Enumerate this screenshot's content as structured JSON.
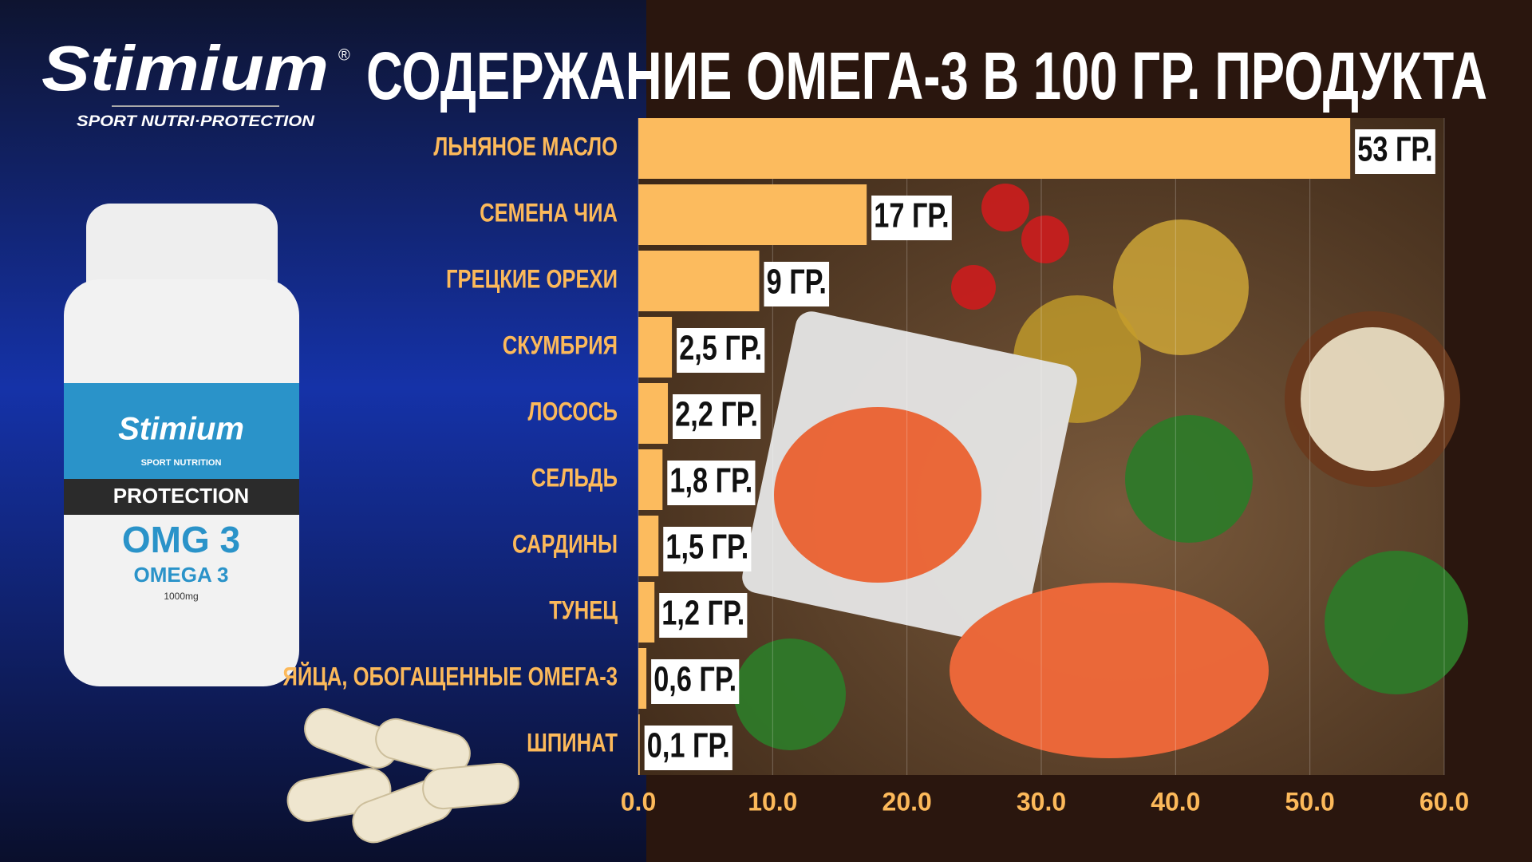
{
  "brand": {
    "name": "Stimium",
    "mark": "®",
    "tagline": "SPORT NUTRI·PROTECTION"
  },
  "product": {
    "brand": "Stimium",
    "line": "SPORT NUTRITION",
    "band": "PROTECTION",
    "name": "OMG 3",
    "subtitle": "OMEGA 3",
    "dose": "1000mg"
  },
  "chart_data": {
    "type": "bar",
    "orientation": "horizontal",
    "title": "СОДЕРЖАНИЕ ОМЕГА-3 В 100 ГР. ПРОДУКТА",
    "categories": [
      "ЛЬНЯНОЕ МАСЛО",
      "СЕМЕНА ЧИА",
      "ГРЕЦКИЕ ОРЕХИ",
      "СКУМБРИЯ",
      "ЛОСОСЬ",
      "СЕЛЬДЬ",
      "САРДИНЫ",
      "ТУНЕЦ",
      "ЯЙЦА, ОБОГАЩЕННЫЕ ОМЕГА-3",
      "ШПИНАТ"
    ],
    "values": [
      53,
      17,
      9,
      2.5,
      2.2,
      1.8,
      1.5,
      1.2,
      0.6,
      0.1
    ],
    "value_labels": [
      "53 ГР.",
      "17 ГР.",
      "9 ГР.",
      "2,5 ГР.",
      "2,2 ГР.",
      "1,8 ГР.",
      "1,5 ГР.",
      "1,2 ГР.",
      "0,6 ГР.",
      "0,1 ГР."
    ],
    "color": "#fcbb5e",
    "xlim": [
      0,
      60
    ],
    "xticks": [
      {
        "value": 0,
        "label": "0.0"
      },
      {
        "value": 10,
        "label": "10.0"
      },
      {
        "value": 20,
        "label": "20.0"
      },
      {
        "value": 30,
        "label": "30.0"
      },
      {
        "value": 40,
        "label": "40.0"
      },
      {
        "value": 50,
        "label": "50.0"
      },
      {
        "value": 60,
        "label": "60.0"
      }
    ],
    "grid": true
  }
}
